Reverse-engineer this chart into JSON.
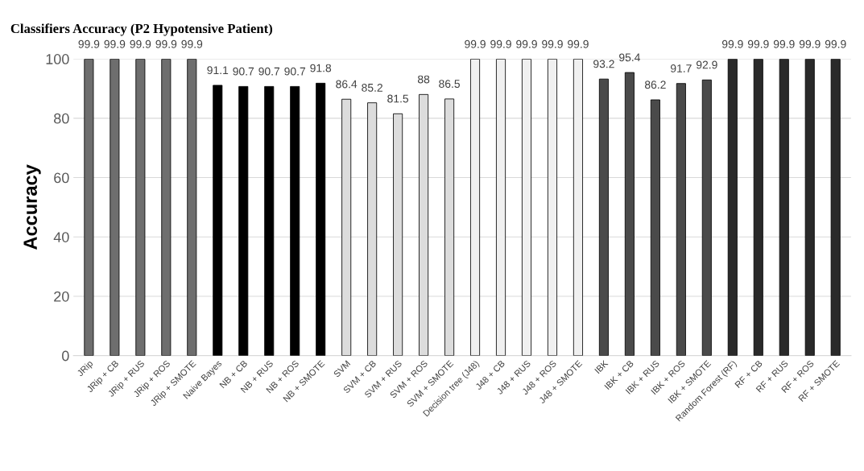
{
  "chart_data": {
    "type": "bar",
    "title": "Classifiers Accuracy (P2 Hypotensive Patient)",
    "ylabel": "Accuracy",
    "categories": [
      "JRip",
      "JRip + CB",
      "JRip + RUS",
      "JRip + ROS",
      "JRip + SMOTE",
      "Naive Bayes",
      "NB + CB",
      "NB + RUS",
      "NB + ROS",
      "NB + SMOTE",
      "SVM",
      "SVM + CB",
      "SVM + RUS",
      "SVM + ROS",
      "SVM + SMOTE",
      "Decision tree (J48)",
      "J48 + CB",
      "J48 + RUS",
      "J48 + ROS",
      "J48 + SMOTE",
      "IBK",
      "IBK + CB",
      "IBK + RUS",
      "IBK + ROS",
      "IBK + SMOTE",
      "Random Forest (RF)",
      "RF + CB",
      "RF + RUS",
      "RF + ROS",
      "RF + SMOTE"
    ],
    "values": [
      99.9,
      99.9,
      99.9,
      99.9,
      99.9,
      91.1,
      90.7,
      90.7,
      90.7,
      91.8,
      86.4,
      85.2,
      81.5,
      88,
      86.5,
      99.9,
      99.9,
      99.9,
      99.9,
      99.9,
      93.2,
      95.4,
      86.2,
      91.7,
      92.9,
      99.9,
      99.9,
      99.9,
      99.9,
      99.9
    ],
    "colors": [
      "#6e6e6e",
      "#6e6e6e",
      "#6e6e6e",
      "#6e6e6e",
      "#6e6e6e",
      "#000000",
      "#000000",
      "#000000",
      "#000000",
      "#000000",
      "#dcdcdc",
      "#dcdcdc",
      "#dcdcdc",
      "#dcdcdc",
      "#dcdcdc",
      "#f0f0f0",
      "#f0f0f0",
      "#f0f0f0",
      "#f0f0f0",
      "#f0f0f0",
      "#4a4a4a",
      "#4a4a4a",
      "#4a4a4a",
      "#4a4a4a",
      "#4a4a4a",
      "#2a2a2a",
      "#2a2a2a",
      "#2a2a2a",
      "#2a2a2a",
      "#2a2a2a"
    ],
    "ylim": [
      0,
      100
    ],
    "yticks": [
      0,
      20,
      40,
      60,
      80,
      100
    ],
    "grid": "y",
    "data_labels": true
  }
}
